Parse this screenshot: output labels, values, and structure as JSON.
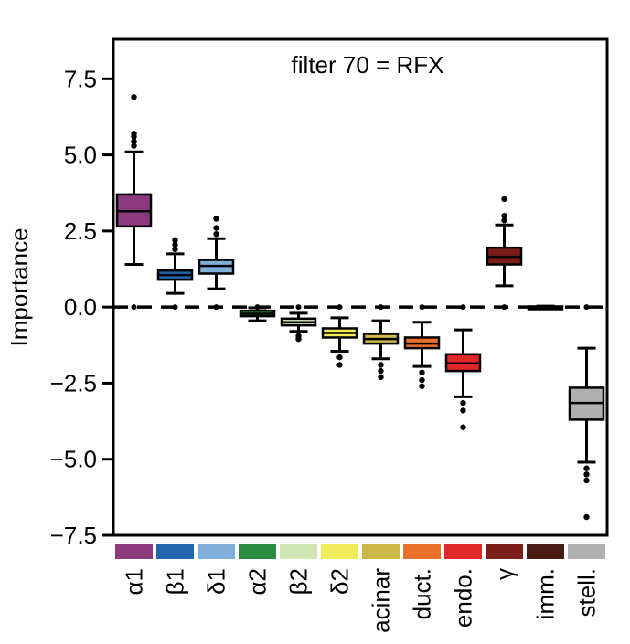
{
  "chart_data": {
    "type": "box",
    "title": "filter 70 = RFX",
    "ylabel": "Importance",
    "xlabel": "",
    "ylim": [
      -7.5,
      8.8
    ],
    "yticks": [
      7.5,
      5.0,
      2.5,
      0.0,
      -2.5,
      -5.0,
      -7.5
    ],
    "ytick_labels": [
      "7.5",
      "5.0",
      "2.5",
      "0.0",
      "−2.5",
      "−5.0",
      "−7.5"
    ],
    "reference_line": {
      "y": 0,
      "style": "dashed"
    },
    "grid": false,
    "categories": [
      "α1",
      "β1",
      "δ1",
      "α2",
      "β2",
      "δ2",
      "acinar",
      "duct.",
      "endo.",
      "γ",
      "imm.",
      "stell."
    ],
    "colors": [
      "#8B3A7E",
      "#2166AC",
      "#7FAEDB",
      "#2A8A3E",
      "#CFE5B3",
      "#F2EC5A",
      "#CDB746",
      "#E8702A",
      "#E02828",
      "#7A1E1A",
      "#4A1A14",
      "#B0B0B0"
    ],
    "boxes": [
      {
        "q1": 2.65,
        "median": 3.15,
        "q3": 3.7,
        "whisker_low": 1.4,
        "whisker_high": 5.1,
        "outliers": [
          5.3,
          5.45,
          5.6,
          5.7,
          6.9
        ],
        "zero_marker": true
      },
      {
        "q1": 0.9,
        "median": 1.05,
        "q3": 1.2,
        "whisker_low": 0.45,
        "whisker_high": 1.75,
        "outliers": [
          1.9,
          2.05,
          2.2
        ],
        "zero_marker": true
      },
      {
        "q1": 1.1,
        "median": 1.35,
        "q3": 1.55,
        "whisker_low": 0.6,
        "whisker_high": 2.25,
        "outliers": [
          2.4,
          2.6,
          2.9
        ],
        "zero_marker": true
      },
      {
        "q1": -0.3,
        "median": -0.22,
        "q3": -0.12,
        "whisker_low": -0.45,
        "whisker_high": -0.02,
        "outliers": [],
        "zero_marker": true
      },
      {
        "q1": -0.6,
        "median": -0.5,
        "q3": -0.38,
        "whisker_low": -0.8,
        "whisker_high": -0.2,
        "outliers": [
          -0.95,
          -1.05
        ],
        "zero_marker": true
      },
      {
        "q1": -1.0,
        "median": -0.85,
        "q3": -0.7,
        "whisker_low": -1.45,
        "whisker_high": -0.35,
        "outliers": [
          -1.65,
          -1.9
        ],
        "zero_marker": true
      },
      {
        "q1": -1.2,
        "median": -1.05,
        "q3": -0.88,
        "whisker_low": -1.7,
        "whisker_high": -0.45,
        "outliers": [
          -1.9,
          -2.1,
          -2.3
        ],
        "zero_marker": true
      },
      {
        "q1": -1.35,
        "median": -1.2,
        "q3": -1.0,
        "whisker_low": -1.95,
        "whisker_high": -0.5,
        "outliers": [
          -2.15,
          -2.4,
          -2.6
        ],
        "zero_marker": true
      },
      {
        "q1": -2.1,
        "median": -1.85,
        "q3": -1.55,
        "whisker_low": -2.95,
        "whisker_high": -0.75,
        "outliers": [
          -3.15,
          -3.4,
          -3.95
        ],
        "zero_marker": true
      },
      {
        "q1": 1.4,
        "median": 1.65,
        "q3": 1.95,
        "whisker_low": 0.7,
        "whisker_high": 2.7,
        "outliers": [
          2.85,
          3.0,
          3.55
        ],
        "zero_marker": true
      },
      {
        "q1": -0.02,
        "median": 0.0,
        "q3": 0.02,
        "whisker_low": -0.03,
        "whisker_high": 0.03,
        "outliers": [],
        "zero_marker": false
      },
      {
        "q1": -3.7,
        "median": -3.15,
        "q3": -2.65,
        "whisker_low": -5.1,
        "whisker_high": -1.35,
        "outliers": [
          -5.3,
          -5.5,
          -5.7,
          -6.9
        ],
        "zero_marker": true
      }
    ]
  }
}
